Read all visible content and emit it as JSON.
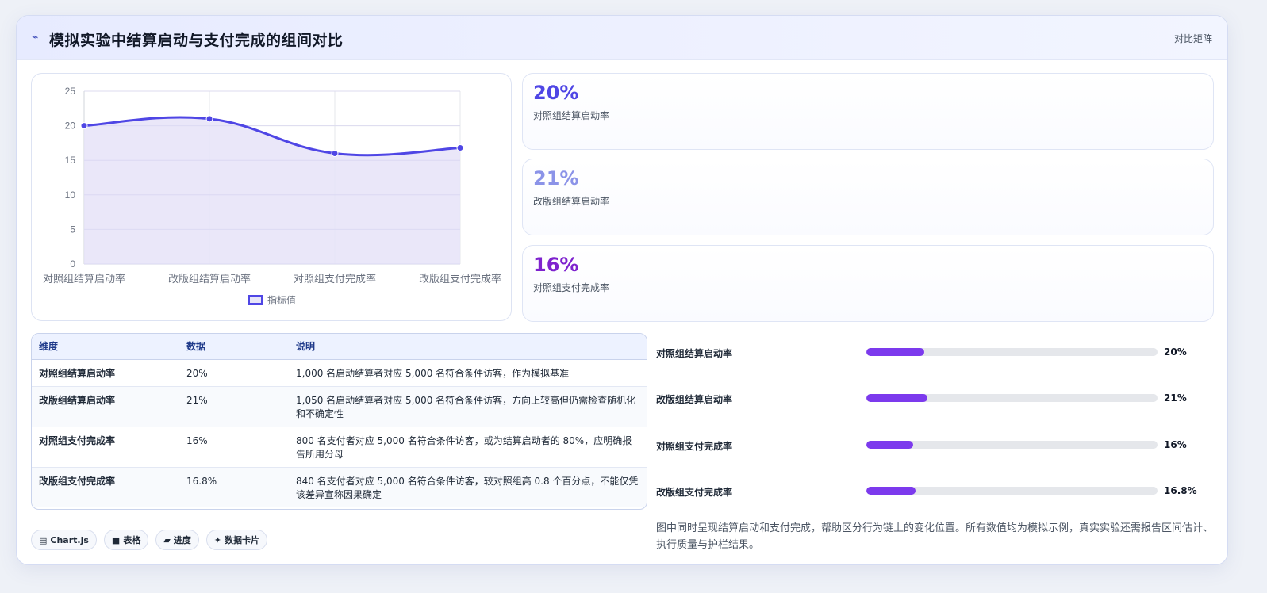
{
  "header": {
    "icon": "trend-icon",
    "title": "模拟实验中结算启动与支付完成的组间对比",
    "tag": "对比矩阵"
  },
  "chart_data": {
    "type": "line",
    "categories": [
      "对照组结算启动率",
      "改版组结算启动率",
      "对照组支付完成率",
      "改版组支付完成率"
    ],
    "series": [
      {
        "name": "指标值",
        "values": [
          20,
          21,
          16,
          16.8
        ]
      }
    ],
    "ylim": [
      0,
      25
    ],
    "yticks": [
      "0",
      "5",
      "10",
      "15",
      "20",
      "25"
    ],
    "fill": true,
    "grid": true,
    "legend": "bottom",
    "colors": {
      "line": "#4f46e5",
      "fill": "#e6e3f8"
    }
  },
  "stats": [
    {
      "value": "20%",
      "caption": "对照组结算启动率",
      "color": "#4f46e5"
    },
    {
      "value": "21%",
      "caption": "改版组结算启动率",
      "color": "#8b93e8"
    },
    {
      "value": "16%",
      "caption": "对照组支付完成率",
      "color": "#7e22ce"
    }
  ],
  "table": {
    "headers": [
      "维度",
      "数据",
      "说明"
    ],
    "rows": [
      [
        "对照组结算启动率",
        "20%",
        "1,000 名启动结算者对应 5,000 名符合条件访客，作为模拟基准"
      ],
      [
        "改版组结算启动率",
        "21%",
        "1,050 名启动结算者对应 5,000 名符合条件访客，方向上较高但仍需检查随机化和不确定性"
      ],
      [
        "对照组支付完成率",
        "16%",
        "800 名支付者对应 5,000 名符合条件访客，或为结算启动者的 80%，应明确报告所用分母"
      ],
      [
        "改版组支付完成率",
        "16.8%",
        "840 名支付者对应 5,000 名符合条件访客，较对照组高 0.8 个百分点，不能仅凭该差异宣称因果确定"
      ]
    ]
  },
  "progress": [
    {
      "label": "对照组结算启动率",
      "value": "20%",
      "fraction": 0.2
    },
    {
      "label": "改版组结算启动率",
      "value": "21%",
      "fraction": 0.21
    },
    {
      "label": "对照组支付完成率",
      "value": "16%",
      "fraction": 0.16
    },
    {
      "label": "改版组支付完成率",
      "value": "16.8%",
      "fraction": 0.168
    }
  ],
  "chips": [
    {
      "icon": "chart-icon",
      "glyph": "▤",
      "label": "Chart.js"
    },
    {
      "icon": "table-icon",
      "glyph": "■",
      "label": "表格"
    },
    {
      "icon": "progress-icon",
      "glyph": "▰",
      "label": "进度"
    },
    {
      "icon": "sparkle-icon",
      "glyph": "✦",
      "label": "数据卡片"
    }
  ],
  "note": "图中同时呈现结算启动和支付完成，帮助区分行为链上的变化位置。所有数值均为模拟示例，真实实验还需报告区间估计、执行质量与护栏结果。"
}
